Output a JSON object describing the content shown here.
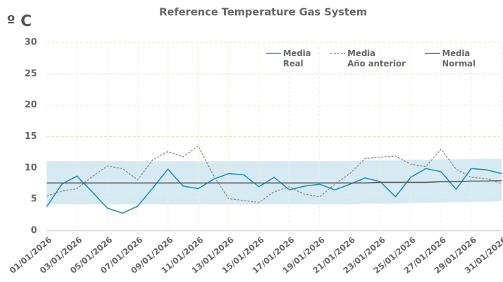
{
  "chart_data": {
    "type": "line",
    "title": "Reference Temperature Gas System",
    "y_label": "º C",
    "categories": [
      "01/01/2026",
      null,
      "03/01/2026",
      null,
      "05/01/2026",
      null,
      "07/01/2026",
      null,
      "09/01/2026",
      null,
      "11/01/2026",
      null,
      "13/01/2026",
      null,
      "15/01/2026",
      null,
      "17/01/2026",
      null,
      "19/01/2026",
      null,
      "21/01/2026",
      null,
      "23/01/2026",
      null,
      "25/01/2026",
      null,
      "27/01/2026",
      null,
      "29/01/2026",
      null,
      "31/01/2026"
    ],
    "ylim": [
      0,
      30
    ],
    "yticks": [
      0,
      5,
      10,
      15,
      20,
      25,
      30
    ],
    "grid": true,
    "legend": "top-right",
    "band": {
      "color": "#d5eaf3",
      "lower": [
        4.2,
        4.2,
        4.2,
        4.2,
        4.2,
        4.2,
        4.2,
        4.2,
        4.2,
        4.2,
        4.2,
        4.2,
        4.2,
        4.2,
        4.2,
        4.2,
        4.2,
        4.2,
        4.2,
        4.2,
        4.2,
        4.3,
        4.3,
        4.3,
        4.4,
        4.4,
        4.5,
        4.5,
        4.6,
        4.6,
        4.7
      ],
      "upper": [
        11.1,
        11.1,
        11.1,
        11.1,
        11.1,
        11.1,
        11.1,
        11.1,
        11.1,
        11.1,
        11.1,
        11.1,
        11.1,
        11.1,
        11.1,
        11.1,
        11.1,
        11.1,
        11.1,
        11.1,
        11.1,
        11.2,
        11.2,
        11.2,
        11.3,
        11.3,
        11.4,
        11.4,
        11.4,
        11.5,
        11.5
      ]
    },
    "series": [
      {
        "name": "Media\nReal",
        "color": "#1b8fbf",
        "dash": false,
        "values": [
          3.8,
          7.4,
          8.7,
          6.2,
          3.6,
          2.8,
          3.9,
          6.8,
          9.8,
          7.1,
          6.7,
          8.2,
          9.1,
          8.9,
          7.0,
          8.5,
          6.5,
          7.1,
          7.4,
          6.5,
          7.4,
          8.4,
          7.8,
          5.4,
          8.5,
          9.9,
          9.4,
          6.6,
          9.9,
          9.7,
          9.1
        ]
      },
      {
        "name": "Media\nAño anterior",
        "color": "#8c8c8c",
        "dash": true,
        "values": [
          5.5,
          6.3,
          6.7,
          8.6,
          10.3,
          9.9,
          8.1,
          11.3,
          12.6,
          11.8,
          13.5,
          8.8,
          5.1,
          4.8,
          4.5,
          6.2,
          7.0,
          5.8,
          5.4,
          7.4,
          9.1,
          11.5,
          11.7,
          11.9,
          10.6,
          10.2,
          13.0,
          9.8,
          8.5,
          8.3,
          7.5
        ]
      },
      {
        "name": "Media\nNormal",
        "color": "#595959",
        "dash": false,
        "values": [
          7.6,
          7.6,
          7.6,
          7.6,
          7.6,
          7.6,
          7.6,
          7.6,
          7.6,
          7.6,
          7.6,
          7.6,
          7.6,
          7.6,
          7.6,
          7.6,
          7.6,
          7.6,
          7.6,
          7.6,
          7.6,
          7.6,
          7.7,
          7.7,
          7.7,
          7.7,
          7.8,
          7.8,
          7.9,
          7.9,
          8.0
        ]
      }
    ]
  }
}
